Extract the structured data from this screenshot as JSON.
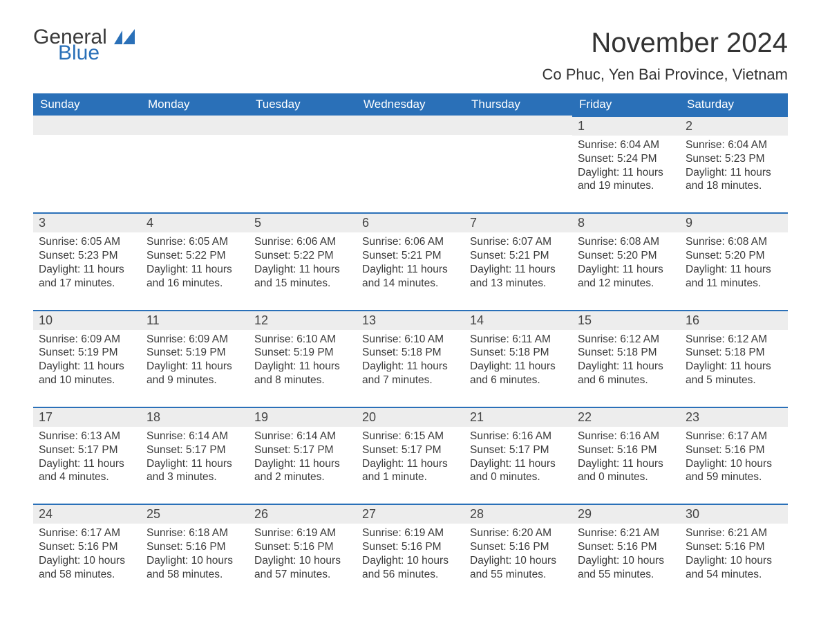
{
  "brand": {
    "word1": "General",
    "word2": "Blue",
    "accent_color": "#2a70b8"
  },
  "title": "November 2024",
  "location": "Co Phuc, Yen Bai Province, Vietnam",
  "colors": {
    "header_bg": "#2a70b8",
    "header_text": "#ffffff",
    "daynum_bg": "#ededed",
    "text": "#3a3a3a",
    "row_divider": "#2a70b8",
    "page_bg": "#ffffff"
  },
  "fonts": {
    "title_size_pt": 30,
    "location_size_pt": 17,
    "header_size_pt": 13,
    "body_size_pt": 11.5
  },
  "weekdays": [
    "Sunday",
    "Monday",
    "Tuesday",
    "Wednesday",
    "Thursday",
    "Friday",
    "Saturday"
  ],
  "layout": {
    "start_weekday_index": 5,
    "rows": 5,
    "cols": 7
  },
  "days": [
    {
      "n": 1,
      "sunrise": "6:04 AM",
      "sunset": "5:24 PM",
      "daylight": "11 hours and 19 minutes."
    },
    {
      "n": 2,
      "sunrise": "6:04 AM",
      "sunset": "5:23 PM",
      "daylight": "11 hours and 18 minutes."
    },
    {
      "n": 3,
      "sunrise": "6:05 AM",
      "sunset": "5:23 PM",
      "daylight": "11 hours and 17 minutes."
    },
    {
      "n": 4,
      "sunrise": "6:05 AM",
      "sunset": "5:22 PM",
      "daylight": "11 hours and 16 minutes."
    },
    {
      "n": 5,
      "sunrise": "6:06 AM",
      "sunset": "5:22 PM",
      "daylight": "11 hours and 15 minutes."
    },
    {
      "n": 6,
      "sunrise": "6:06 AM",
      "sunset": "5:21 PM",
      "daylight": "11 hours and 14 minutes."
    },
    {
      "n": 7,
      "sunrise": "6:07 AM",
      "sunset": "5:21 PM",
      "daylight": "11 hours and 13 minutes."
    },
    {
      "n": 8,
      "sunrise": "6:08 AM",
      "sunset": "5:20 PM",
      "daylight": "11 hours and 12 minutes."
    },
    {
      "n": 9,
      "sunrise": "6:08 AM",
      "sunset": "5:20 PM",
      "daylight": "11 hours and 11 minutes."
    },
    {
      "n": 10,
      "sunrise": "6:09 AM",
      "sunset": "5:19 PM",
      "daylight": "11 hours and 10 minutes."
    },
    {
      "n": 11,
      "sunrise": "6:09 AM",
      "sunset": "5:19 PM",
      "daylight": "11 hours and 9 minutes."
    },
    {
      "n": 12,
      "sunrise": "6:10 AM",
      "sunset": "5:19 PM",
      "daylight": "11 hours and 8 minutes."
    },
    {
      "n": 13,
      "sunrise": "6:10 AM",
      "sunset": "5:18 PM",
      "daylight": "11 hours and 7 minutes."
    },
    {
      "n": 14,
      "sunrise": "6:11 AM",
      "sunset": "5:18 PM",
      "daylight": "11 hours and 6 minutes."
    },
    {
      "n": 15,
      "sunrise": "6:12 AM",
      "sunset": "5:18 PM",
      "daylight": "11 hours and 6 minutes."
    },
    {
      "n": 16,
      "sunrise": "6:12 AM",
      "sunset": "5:18 PM",
      "daylight": "11 hours and 5 minutes."
    },
    {
      "n": 17,
      "sunrise": "6:13 AM",
      "sunset": "5:17 PM",
      "daylight": "11 hours and 4 minutes."
    },
    {
      "n": 18,
      "sunrise": "6:14 AM",
      "sunset": "5:17 PM",
      "daylight": "11 hours and 3 minutes."
    },
    {
      "n": 19,
      "sunrise": "6:14 AM",
      "sunset": "5:17 PM",
      "daylight": "11 hours and 2 minutes."
    },
    {
      "n": 20,
      "sunrise": "6:15 AM",
      "sunset": "5:17 PM",
      "daylight": "11 hours and 1 minute."
    },
    {
      "n": 21,
      "sunrise": "6:16 AM",
      "sunset": "5:17 PM",
      "daylight": "11 hours and 0 minutes."
    },
    {
      "n": 22,
      "sunrise": "6:16 AM",
      "sunset": "5:16 PM",
      "daylight": "11 hours and 0 minutes."
    },
    {
      "n": 23,
      "sunrise": "6:17 AM",
      "sunset": "5:16 PM",
      "daylight": "10 hours and 59 minutes."
    },
    {
      "n": 24,
      "sunrise": "6:17 AM",
      "sunset": "5:16 PM",
      "daylight": "10 hours and 58 minutes."
    },
    {
      "n": 25,
      "sunrise": "6:18 AM",
      "sunset": "5:16 PM",
      "daylight": "10 hours and 58 minutes."
    },
    {
      "n": 26,
      "sunrise": "6:19 AM",
      "sunset": "5:16 PM",
      "daylight": "10 hours and 57 minutes."
    },
    {
      "n": 27,
      "sunrise": "6:19 AM",
      "sunset": "5:16 PM",
      "daylight": "10 hours and 56 minutes."
    },
    {
      "n": 28,
      "sunrise": "6:20 AM",
      "sunset": "5:16 PM",
      "daylight": "10 hours and 55 minutes."
    },
    {
      "n": 29,
      "sunrise": "6:21 AM",
      "sunset": "5:16 PM",
      "daylight": "10 hours and 55 minutes."
    },
    {
      "n": 30,
      "sunrise": "6:21 AM",
      "sunset": "5:16 PM",
      "daylight": "10 hours and 54 minutes."
    }
  ],
  "labels": {
    "sunrise": "Sunrise:",
    "sunset": "Sunset:",
    "daylight": "Daylight:"
  }
}
